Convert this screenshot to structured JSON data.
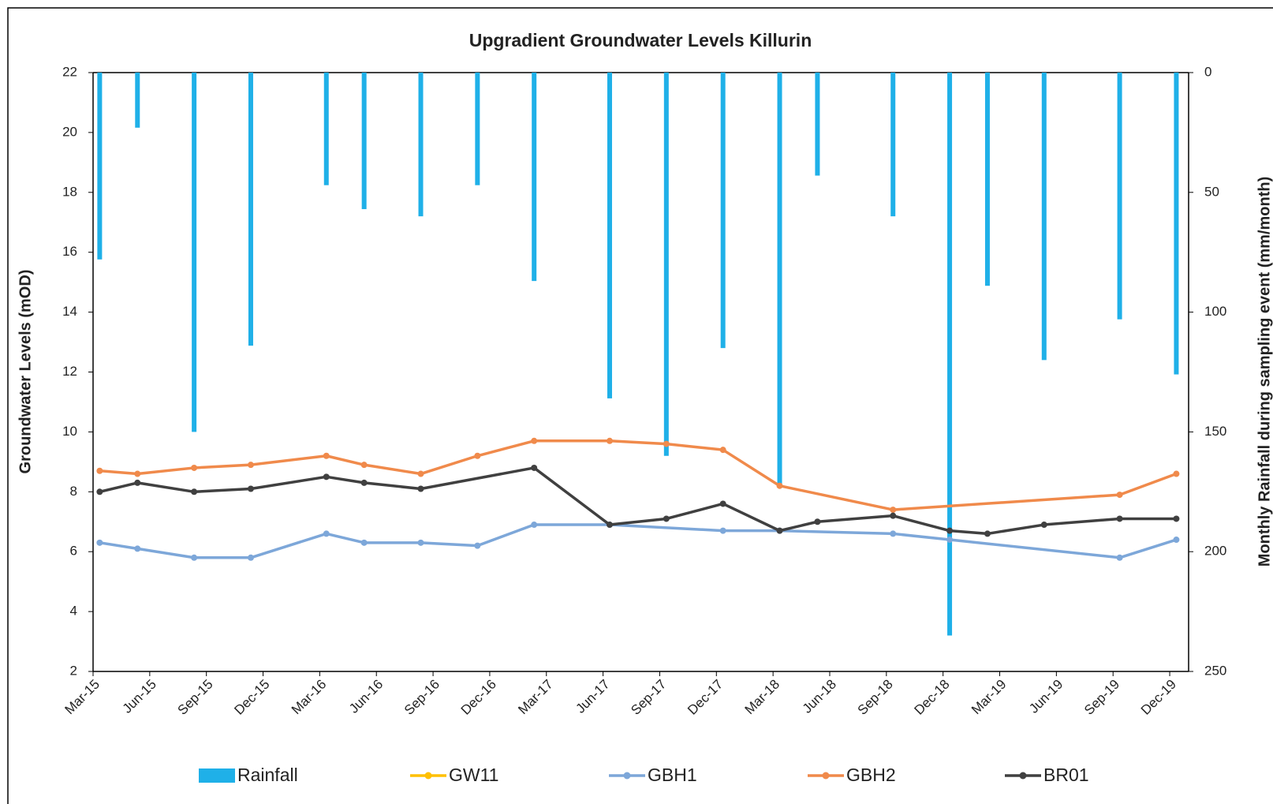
{
  "chart_data": {
    "type": "line",
    "title": "Upgradient Groundwater Levels Killurin",
    "y_label": "Groundwater Levels (mOD)",
    "y2_label": "Monthly Rainfall during sampling event (mm/month)",
    "xlim": [
      "Mar-15",
      "Jan-20"
    ],
    "xticks": [
      "Mar-15",
      "Jun-15",
      "Sep-15",
      "Dec-15",
      "Mar-16",
      "Jun-16",
      "Sep-16",
      "Dec-16",
      "Mar-17",
      "Jun-17",
      "Sep-17",
      "Dec-17",
      "Mar-18",
      "Jun-18",
      "Sep-18",
      "Dec-18",
      "Mar-19",
      "Jun-19",
      "Sep-19",
      "Dec-19"
    ],
    "ylim": [
      2,
      22
    ],
    "yticks": [
      2,
      4,
      6,
      8,
      10,
      12,
      14,
      16,
      18,
      20,
      22
    ],
    "y2lim": [
      0,
      250
    ],
    "y2ticks": [
      0,
      50,
      100,
      150,
      200,
      250
    ],
    "y2_inverted": true,
    "grid": false,
    "legend": "bottom",
    "series": [
      {
        "name": "Rainfall",
        "type": "bar",
        "axis": "y2",
        "color": "#1fb0e8",
        "x": [
          "Mar-15",
          "May-15",
          "Aug-15",
          "Nov-15",
          "Mar-16",
          "May-16",
          "Aug-16",
          "Nov-16",
          "Feb-17",
          "Jun-17",
          "Sep-17",
          "Dec-17",
          "Mar-18",
          "May-18",
          "Sep-18",
          "Dec-18",
          "Feb-19",
          "May-19",
          "Sep-19",
          "Dec-19"
        ],
        "values": [
          78,
          23,
          150,
          114,
          47,
          57,
          60,
          47,
          87,
          136,
          160,
          115,
          172,
          43,
          60,
          235,
          89,
          120,
          103,
          126
        ]
      },
      {
        "name": "GW11",
        "type": "line",
        "color": "#ffc000",
        "x": [],
        "values": []
      },
      {
        "name": "GBH1",
        "type": "line",
        "color": "#7da7d9",
        "x": [
          "Mar-15",
          "May-15",
          "Aug-15",
          "Nov-15",
          "Mar-16",
          "May-16",
          "Aug-16",
          "Nov-16",
          "Feb-17",
          "Jun-17",
          "Dec-17",
          "Mar-18",
          "Sep-18",
          "Dec-18",
          "Sep-19",
          "Dec-19"
        ],
        "values": [
          6.3,
          6.1,
          5.8,
          5.8,
          6.6,
          6.3,
          6.3,
          6.2,
          6.9,
          6.9,
          6.7,
          6.7,
          6.6,
          6.4,
          5.8,
          6.4
        ]
      },
      {
        "name": "GBH2",
        "type": "line",
        "color": "#f08a4b",
        "x": [
          "Mar-15",
          "May-15",
          "Aug-15",
          "Nov-15",
          "Mar-16",
          "May-16",
          "Aug-16",
          "Nov-16",
          "Feb-17",
          "Jun-17",
          "Sep-17",
          "Dec-17",
          "Mar-18",
          "Sep-18",
          "Sep-19",
          "Dec-19"
        ],
        "values": [
          8.7,
          8.6,
          8.8,
          8.9,
          9.2,
          8.9,
          8.6,
          9.2,
          9.7,
          9.7,
          9.6,
          9.4,
          8.2,
          7.4,
          7.9,
          8.6
        ]
      },
      {
        "name": "BR01",
        "type": "line",
        "color": "#404040",
        "x": [
          "Mar-15",
          "May-15",
          "Aug-15",
          "Nov-15",
          "Mar-16",
          "May-16",
          "Aug-16",
          "Feb-17",
          "Jun-17",
          "Sep-17",
          "Dec-17",
          "Mar-18",
          "May-18",
          "Sep-18",
          "Dec-18",
          "Feb-19",
          "May-19",
          "Sep-19",
          "Dec-19"
        ],
        "values": [
          8.0,
          8.3,
          8.0,
          8.1,
          8.5,
          8.3,
          8.1,
          8.8,
          6.9,
          7.1,
          7.6,
          6.7,
          7.0,
          7.2,
          6.7,
          6.6,
          6.9,
          7.1,
          7.1
        ]
      }
    ]
  }
}
